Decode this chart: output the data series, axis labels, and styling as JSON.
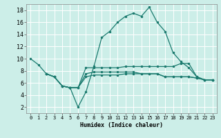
{
  "xlabel": "Humidex (Indice chaleur)",
  "bg_color": "#cceee8",
  "grid_color": "#ffffff",
  "line_color": "#1a7a6e",
  "xlim": [
    -0.5,
    23.5
  ],
  "ylim": [
    1,
    19
  ],
  "yticks": [
    2,
    4,
    6,
    8,
    10,
    12,
    14,
    16,
    18
  ],
  "xticks": [
    0,
    1,
    2,
    3,
    4,
    5,
    6,
    7,
    8,
    9,
    10,
    11,
    12,
    13,
    14,
    15,
    16,
    17,
    18,
    19,
    20,
    21,
    22,
    23
  ],
  "line1_x": [
    0,
    1,
    2,
    3,
    4,
    5,
    6,
    7,
    8,
    9,
    10,
    11,
    12,
    13,
    14,
    15,
    16,
    17,
    18,
    19,
    20,
    21,
    22,
    23
  ],
  "line1_y": [
    10,
    9,
    7.5,
    7.0,
    5.5,
    5.2,
    2.0,
    4.5,
    8.7,
    13.5,
    14.5,
    16.0,
    17.0,
    17.5,
    17.0,
    18.5,
    16.0,
    14.5,
    11.0,
    9.5,
    8.5,
    7.0,
    6.5,
    6.5
  ],
  "line2_x": [
    2,
    3,
    4,
    5,
    6,
    7,
    8,
    9,
    10,
    11,
    12,
    13,
    14,
    15,
    16,
    17,
    18,
    19,
    20,
    21,
    22,
    23
  ],
  "line2_y": [
    7.5,
    7.0,
    5.5,
    5.2,
    5.2,
    8.5,
    8.5,
    8.5,
    8.5,
    8.5,
    8.7,
    8.7,
    8.7,
    8.7,
    8.7,
    8.7,
    8.7,
    9.2,
    9.2,
    7.0,
    6.5,
    6.5
  ],
  "line3_x": [
    2,
    3,
    4,
    5,
    6,
    7,
    8,
    9,
    10,
    11,
    12,
    13,
    14,
    15,
    16,
    17,
    18,
    19,
    20,
    21,
    22,
    23
  ],
  "line3_y": [
    7.5,
    7.0,
    5.5,
    5.2,
    5.2,
    7.5,
    7.8,
    7.8,
    7.8,
    7.8,
    7.8,
    7.8,
    7.5,
    7.5,
    7.5,
    7.0,
    7.0,
    7.0,
    7.0,
    6.8,
    6.5,
    6.5
  ],
  "line4_x": [
    2,
    3,
    4,
    5,
    6,
    7,
    8,
    9,
    10,
    11,
    12,
    13,
    14,
    15,
    16,
    17,
    18,
    19,
    20,
    21,
    22,
    23
  ],
  "line4_y": [
    7.5,
    7.0,
    5.5,
    5.2,
    5.2,
    7.0,
    7.3,
    7.3,
    7.3,
    7.3,
    7.5,
    7.5,
    7.5,
    7.5,
    7.5,
    7.0,
    7.0,
    7.0,
    7.0,
    6.8,
    6.5,
    6.5
  ]
}
